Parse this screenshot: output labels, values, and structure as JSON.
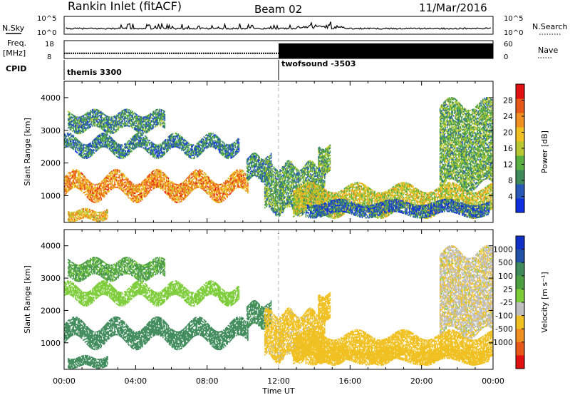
{
  "header": {
    "title": "Rankin Inlet (fitACF)",
    "beam": "Beam 02",
    "date": "11/Mar/2016"
  },
  "nsky_panel": {
    "left_label": "N.Sky",
    "left_ticks": [
      "10^5",
      "10^0"
    ],
    "right_label": "N.Search",
    "right_ticks": [
      "10^5",
      "10^0"
    ]
  },
  "freq_panel": {
    "left_label_1": "Freq.",
    "left_label_2": "[MHz]",
    "left_ticks": [
      "18",
      "8"
    ],
    "right_label": "Nave",
    "right_ticks": [
      "60",
      "0"
    ],
    "freq_value_mhz": 10.9,
    "nave_start_hour": 12.0,
    "nave_value": 51
  },
  "cpid_panel": {
    "label": "CPID",
    "modes": [
      {
        "name": "themis 3300",
        "start_hour": 0
      },
      {
        "name": "twofsound -3503",
        "start_hour": 12.0
      }
    ]
  },
  "chart_data": [
    {
      "type": "heatmap",
      "quantity": "Power",
      "ylabel": "Slant Range [km]",
      "xlabel": "Time UT",
      "ylim": [
        180,
        4500
      ],
      "xlim": [
        0,
        24
      ],
      "y_ticks": [
        1000,
        2000,
        3000,
        4000
      ],
      "x_ticks": [
        "00:00",
        "04:00",
        "08:00",
        "12:00",
        "16:00",
        "20:00",
        "00:00"
      ],
      "colorbar": {
        "label": "Power [dB]",
        "tick_labels": [
          "4",
          "8",
          "12",
          "16",
          "20",
          "24",
          "28"
        ],
        "tick_values": [
          4,
          8,
          12,
          16,
          20,
          24,
          28
        ],
        "range": [
          0,
          32
        ],
        "colors": [
          "#1030e0",
          "#2858b8",
          "#3e8a5a",
          "#58b040",
          "#b8c830",
          "#f0c020",
          "#f09020",
          "#e85818",
          "#e01010"
        ]
      },
      "scatter_regions": [
        {
          "t0": 0.0,
          "t1": 10.3,
          "r_low": 1000,
          "r_high": 1550,
          "wave_amp": 230,
          "wave_period_h": 2.3,
          "value": 23
        },
        {
          "t0": 0.0,
          "t1": 9.8,
          "r_low": 2300,
          "r_high": 2750,
          "wave_amp": 180,
          "wave_period_h": 2.0,
          "value": 8
        },
        {
          "t0": 0.2,
          "t1": 5.6,
          "r_low": 3000,
          "r_high": 3500,
          "wave_amp": 120,
          "wave_period_h": 1.8,
          "value": 9
        },
        {
          "t0": 0.2,
          "t1": 2.4,
          "r_low": 250,
          "r_high": 560,
          "wave_amp": 60,
          "wave_period_h": 1.5,
          "value": 20
        },
        {
          "t0": 10.2,
          "t1": 11.6,
          "r_low": 1500,
          "r_high": 2200,
          "wave_amp": 100,
          "wave_period_h": 1.0,
          "value": 9
        },
        {
          "t0": 11.2,
          "t1": 14.6,
          "r_low": 500,
          "r_high": 1900,
          "wave_amp": 150,
          "wave_period_h": 1.2,
          "value": 11
        },
        {
          "t0": 12.8,
          "t1": 24.0,
          "r_low": 450,
          "r_high": 1250,
          "wave_amp": 160,
          "wave_period_h": 2.6,
          "value": 17
        },
        {
          "t0": 13.5,
          "t1": 23.8,
          "r_low": 400,
          "r_high": 800,
          "wave_amp": 100,
          "wave_period_h": 3.0,
          "value": 6
        },
        {
          "t0": 14.2,
          "t1": 14.9,
          "r_low": 1700,
          "r_high": 2500,
          "wave_amp": 80,
          "wave_period_h": 1.0,
          "value": 12
        },
        {
          "t0": 21.0,
          "t1": 24.0,
          "r_low": 1300,
          "r_high": 3800,
          "wave_amp": 200,
          "wave_period_h": 2.0,
          "value": 12
        }
      ]
    },
    {
      "type": "heatmap",
      "quantity": "Velocity",
      "ylabel": "Slant Range [km]",
      "xlabel": "Time UT",
      "ylim": [
        180,
        4500
      ],
      "xlim": [
        0,
        24
      ],
      "y_ticks": [
        1000,
        2000,
        3000,
        4000
      ],
      "x_ticks": [
        "00:00",
        "04:00",
        "08:00",
        "12:00",
        "16:00",
        "20:00",
        "00:00"
      ],
      "colorbar": {
        "label": "Velocity [m s⁻¹]",
        "tick_labels": [
          "1000",
          "500",
          "100",
          "25",
          "-25",
          "-100",
          "-500",
          "-1000"
        ],
        "colors": [
          "#1030c8",
          "#2050a8",
          "#3e8a5a",
          "#4ca040",
          "#7ccc38",
          "#bebebe",
          "#f0c020",
          "#f09020",
          "#e85818",
          "#e01010"
        ]
      },
      "scatter_regions": [
        {
          "t0": 0.0,
          "t1": 10.3,
          "r_low": 1000,
          "r_high": 1550,
          "wave_amp": 230,
          "wave_period_h": 2.3,
          "value": 400
        },
        {
          "t0": 0.0,
          "t1": 9.8,
          "r_low": 2300,
          "r_high": 2750,
          "wave_amp": 180,
          "wave_period_h": 2.0,
          "value": 0
        },
        {
          "t0": 0.2,
          "t1": 5.6,
          "r_low": 3000,
          "r_high": 3500,
          "wave_amp": 120,
          "wave_period_h": 1.8,
          "value": 60
        },
        {
          "t0": 0.2,
          "t1": 2.4,
          "r_low": 250,
          "r_high": 560,
          "wave_amp": 60,
          "wave_period_h": 1.5,
          "value": 350
        },
        {
          "t0": 10.2,
          "t1": 11.6,
          "r_low": 1500,
          "r_high": 2200,
          "wave_amp": 100,
          "wave_period_h": 1.0,
          "value": 150
        },
        {
          "t0": 11.2,
          "t1": 14.6,
          "r_low": 500,
          "r_high": 1900,
          "wave_amp": 150,
          "wave_period_h": 1.2,
          "value": -150
        },
        {
          "t0": 12.8,
          "t1": 24.0,
          "r_low": 450,
          "r_high": 1250,
          "wave_amp": 160,
          "wave_period_h": 2.6,
          "value": -300
        },
        {
          "t0": 13.5,
          "t1": 23.8,
          "r_low": 400,
          "r_high": 800,
          "wave_amp": 100,
          "wave_period_h": 3.0,
          "value": -200
        },
        {
          "t0": 14.2,
          "t1": 14.9,
          "r_low": 1700,
          "r_high": 2500,
          "wave_amp": 80,
          "wave_period_h": 1.0,
          "value": -400
        },
        {
          "t0": 21.0,
          "t1": 24.0,
          "r_low": 1300,
          "r_high": 3800,
          "wave_amp": 200,
          "wave_period_h": 2.0,
          "value": -80
        }
      ]
    }
  ]
}
